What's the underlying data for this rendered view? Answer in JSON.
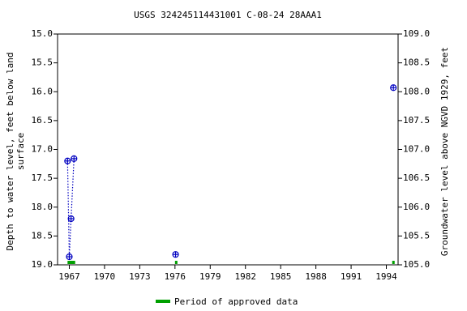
{
  "chart_data": {
    "type": "line",
    "title": "USGS 324245114431001 C-08-24 28AAA1",
    "y_label_lines": [
      "Depth to water level, feet below land",
      "surface"
    ],
    "y2_label": "Groundwater level above NGVD 1929, feet",
    "x": [
      1966.85,
      1967.0,
      1967.15,
      1967.4,
      null,
      1976.05,
      null,
      1994.6
    ],
    "series": [
      {
        "color": "#0000c0",
        "values": [
          17.2,
          18.86,
          18.2,
          17.16,
          null,
          18.82,
          null,
          15.93
        ]
      }
    ],
    "approved": {
      "name": "Period of approved data",
      "color": "#00a000",
      "periods": [
        [
          1966.85,
          1967.5
        ],
        [
          1976.0,
          1976.12
        ],
        [
          1994.5,
          1994.62
        ]
      ]
    },
    "xlim": [
      1966,
      1995
    ],
    "xticks": [
      1967,
      1970,
      1973,
      1976,
      1979,
      1982,
      1985,
      1988,
      1991,
      1994
    ],
    "ylim": [
      15,
      19
    ],
    "yticks": [
      {
        "value": 15,
        "label": "15.0"
      },
      15.5,
      {
        "value": 16,
        "label": "16.0"
      },
      16.5,
      {
        "value": 17,
        "label": "17.0"
      },
      17.5,
      {
        "value": 18,
        "label": "18.0"
      },
      18.5,
      {
        "value": 19,
        "label": "19.0"
      }
    ],
    "y2lim": [
      109,
      105
    ],
    "y2ticks": [
      {
        "value": 109,
        "label": "109.0"
      },
      108.5,
      {
        "value": 108,
        "label": "108.0"
      },
      107.5,
      {
        "value": 107,
        "label": "107.0"
      },
      106.5,
      {
        "value": 106,
        "label": "106.0"
      },
      105.5,
      {
        "value": 105,
        "label": "105.0"
      }
    ]
  }
}
